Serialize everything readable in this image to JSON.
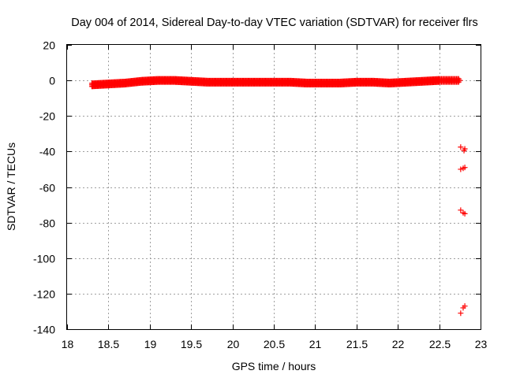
{
  "chart_data": {
    "type": "scatter",
    "title": "Day 004 of 2014, Sidereal Day-to-day VTEC variation (SDTVAR) for receiver flrs",
    "xlabel": "GPS time / hours",
    "ylabel": "SDTVAR / TECUs",
    "xlim": [
      18,
      23
    ],
    "ylim": [
      -140,
      20
    ],
    "xticks": [
      18,
      18.5,
      19,
      19.5,
      20,
      20.5,
      21,
      21.5,
      22,
      22.5,
      23
    ],
    "xtick_labels": [
      "18",
      "18.5",
      "19",
      "19.5",
      "20",
      "20.5",
      "21",
      "21.5",
      "22",
      "22.5",
      "23"
    ],
    "yticks": [
      20,
      0,
      -20,
      -40,
      -60,
      -80,
      -100,
      -120,
      -140
    ],
    "ytick_labels": [
      "20",
      "0",
      "-20",
      "-40",
      "-60",
      "-80",
      "-100",
      "-120",
      "-140"
    ],
    "grid": true,
    "marker": "plus",
    "series": [
      {
        "name": "flrs",
        "color": "#ff0000",
        "band": [
          {
            "x": 18.3,
            "y": -2.5
          },
          {
            "x": 18.5,
            "y": -2.0
          },
          {
            "x": 18.7,
            "y": -1.5
          },
          {
            "x": 18.9,
            "y": -0.5
          },
          {
            "x": 19.1,
            "y": 0.0
          },
          {
            "x": 19.3,
            "y": 0.0
          },
          {
            "x": 19.5,
            "y": -0.5
          },
          {
            "x": 19.7,
            "y": -1.0
          },
          {
            "x": 19.9,
            "y": -1.0
          },
          {
            "x": 20.1,
            "y": -1.0
          },
          {
            "x": 20.3,
            "y": -1.0
          },
          {
            "x": 20.5,
            "y": -1.0
          },
          {
            "x": 20.7,
            "y": -1.0
          },
          {
            "x": 20.9,
            "y": -1.5
          },
          {
            "x": 21.1,
            "y": -1.5
          },
          {
            "x": 21.3,
            "y": -1.5
          },
          {
            "x": 21.5,
            "y": -1.0
          },
          {
            "x": 21.7,
            "y": -1.0
          },
          {
            "x": 21.9,
            "y": -1.5
          },
          {
            "x": 22.1,
            "y": -1.0
          },
          {
            "x": 22.3,
            "y": -0.5
          },
          {
            "x": 22.5,
            "y": 0.0
          },
          {
            "x": 22.75,
            "y": 0.0
          }
        ],
        "outliers": [
          {
            "x": 22.76,
            "y": -37.5
          },
          {
            "x": 22.8,
            "y": -39.5
          },
          {
            "x": 22.81,
            "y": -38.5
          },
          {
            "x": 22.76,
            "y": -50
          },
          {
            "x": 22.79,
            "y": -49.5
          },
          {
            "x": 22.81,
            "y": -49
          },
          {
            "x": 22.76,
            "y": -73
          },
          {
            "x": 22.79,
            "y": -74.5
          },
          {
            "x": 22.81,
            "y": -75
          },
          {
            "x": 22.76,
            "y": -131
          },
          {
            "x": 22.79,
            "y": -128
          },
          {
            "x": 22.81,
            "y": -127
          }
        ]
      }
    ]
  }
}
